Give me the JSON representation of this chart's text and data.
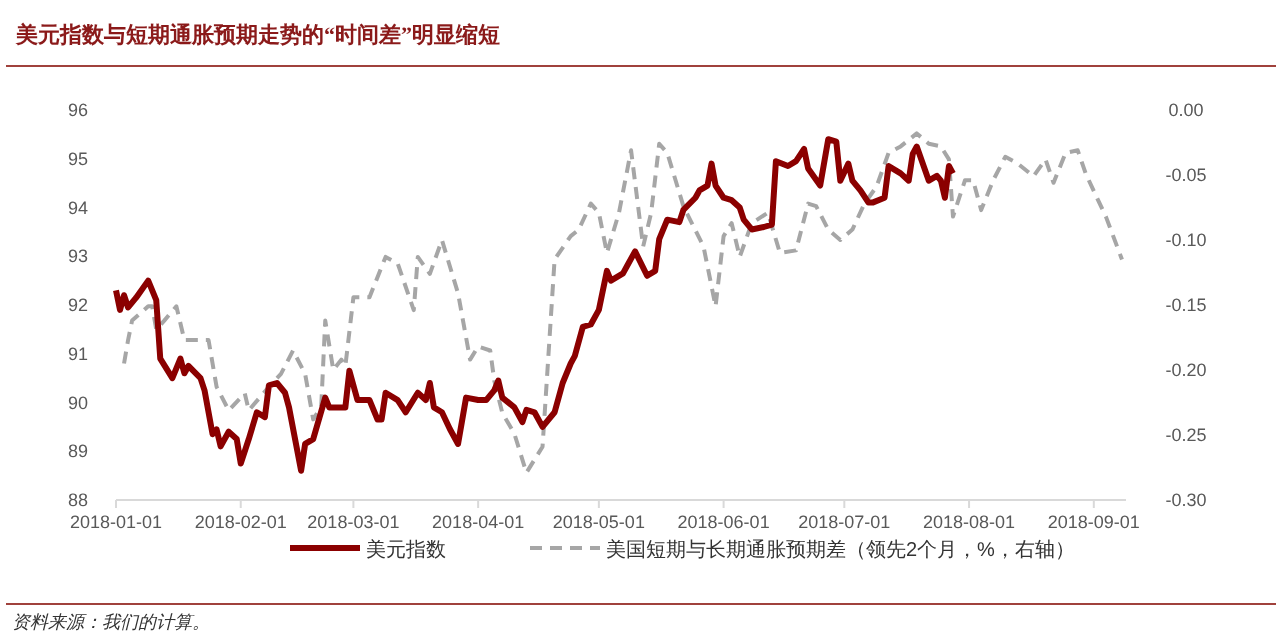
{
  "chart_data": {
    "type": "line",
    "title": "美元指数与短期通胀预期走势的“时间差”明显缩短",
    "annotations": [
      "资料来源：我们的计算。"
    ],
    "xlim": [
      "2018-01-01",
      "2018-09-09"
    ],
    "xticks": [
      "2018-01-01",
      "2018-02-01",
      "2018-03-01",
      "2018-04-01",
      "2018-05-01",
      "2018-06-01",
      "2018-07-01",
      "2018-08-01",
      "2018-09-01"
    ],
    "ylim": [
      88,
      96
    ],
    "yticks": [
      88,
      89,
      90,
      91,
      92,
      93,
      94,
      95,
      96
    ],
    "y2lim": [
      -0.3,
      0
    ],
    "y2ticks": [
      {
        "value": 0,
        "label": "0.00"
      },
      {
        "value": -0.05,
        "label": "-0.05"
      },
      {
        "value": -0.1,
        "label": "-0.10"
      },
      {
        "value": -0.15,
        "label": "-0.15"
      },
      {
        "value": -0.2,
        "label": "-0.20"
      },
      {
        "value": -0.25,
        "label": "-0.25"
      },
      {
        "value": -0.3,
        "label": "-0.30"
      }
    ],
    "legend": "bottom",
    "grid": false,
    "series": [
      {
        "name": "美元指数",
        "color": "#8b0000",
        "line_style": "solid",
        "x": [
          "2018-01-01",
          "2018-01-02",
          "2018-01-03",
          "2018-01-04",
          "2018-01-06",
          "2018-01-09",
          "2018-01-11",
          "2018-01-12",
          "2018-01-15",
          "2018-01-17",
          "2018-01-18",
          "2018-01-19",
          "2018-01-22",
          "2018-01-23",
          "2018-01-25",
          "2018-01-26",
          "2018-01-27",
          "2018-01-29",
          "2018-01-31",
          "2018-02-01",
          "2018-02-03",
          "2018-02-05",
          "2018-02-07",
          "2018-02-08",
          "2018-02-10",
          "2018-02-12",
          "2018-02-13",
          "2018-02-16",
          "2018-02-17",
          "2018-02-19",
          "2018-02-22",
          "2018-02-23",
          "2018-02-27",
          "2018-02-28",
          "2018-03-02",
          "2018-03-05",
          "2018-03-07",
          "2018-03-08",
          "2018-03-09",
          "2018-03-12",
          "2018-03-14",
          "2018-03-17",
          "2018-03-19",
          "2018-03-20",
          "2018-03-21",
          "2018-03-23",
          "2018-03-25",
          "2018-03-27",
          "2018-03-29",
          "2018-04-01",
          "2018-04-03",
          "2018-04-05",
          "2018-04-06",
          "2018-04-07",
          "2018-04-10",
          "2018-04-12",
          "2018-04-13",
          "2018-04-15",
          "2018-04-17",
          "2018-04-20",
          "2018-04-22",
          "2018-04-24",
          "2018-04-25",
          "2018-04-27",
          "2018-04-29",
          "2018-05-01",
          "2018-05-03",
          "2018-05-04",
          "2018-05-07",
          "2018-05-08",
          "2018-05-10",
          "2018-05-13",
          "2018-05-15",
          "2018-05-16",
          "2018-05-18",
          "2018-05-21",
          "2018-05-22",
          "2018-05-25",
          "2018-05-26",
          "2018-05-28",
          "2018-05-29",
          "2018-05-30",
          "2018-06-01",
          "2018-06-03",
          "2018-06-05",
          "2018-06-06",
          "2018-06-08",
          "2018-06-11",
          "2018-06-13",
          "2018-06-14",
          "2018-06-17",
          "2018-06-19",
          "2018-06-21",
          "2018-06-22",
          "2018-06-25",
          "2018-06-27",
          "2018-06-29",
          "2018-06-30",
          "2018-07-02",
          "2018-07-03",
          "2018-07-05",
          "2018-07-07",
          "2018-07-08",
          "2018-07-11",
          "2018-07-12",
          "2018-07-15",
          "2018-07-17",
          "2018-07-18",
          "2018-07-19",
          "2018-07-22",
          "2018-07-24",
          "2018-07-25",
          "2018-07-26",
          "2018-07-27",
          "2018-07-28"
        ],
        "values": [
          92.3,
          91.9,
          92.2,
          91.95,
          92.15,
          92.5,
          92.1,
          90.9,
          90.5,
          90.9,
          90.6,
          90.75,
          90.5,
          90.25,
          89.35,
          89.45,
          89.1,
          89.4,
          89.25,
          88.75,
          89.25,
          89.8,
          89.7,
          90.35,
          90.4,
          90.2,
          89.9,
          88.6,
          89.15,
          89.25,
          90.1,
          89.9,
          89.9,
          90.65,
          90.05,
          90.05,
          89.65,
          89.65,
          90.2,
          90.05,
          89.8,
          90.2,
          90.05,
          90.4,
          89.9,
          89.8,
          89.45,
          89.15,
          90.1,
          90.05,
          90.05,
          90.25,
          90.45,
          90.1,
          89.9,
          89.6,
          89.85,
          89.8,
          89.5,
          89.8,
          90.4,
          90.8,
          90.95,
          91.55,
          91.6,
          91.9,
          92.7,
          92.5,
          92.65,
          92.8,
          93.1,
          92.6,
          92.7,
          93.35,
          93.75,
          93.7,
          93.95,
          94.2,
          94.35,
          94.45,
          94.9,
          94.45,
          94.2,
          94.15,
          94.0,
          93.75,
          93.55,
          93.6,
          93.65,
          94.95,
          94.85,
          94.95,
          95.2,
          94.8,
          94.45,
          95.4,
          95.35,
          94.55,
          94.9,
          94.55,
          94.35,
          94.1,
          94.1,
          94.2,
          94.85,
          94.7,
          94.55,
          95.1,
          95.25,
          94.55,
          94.65,
          94.55,
          94.2,
          94.85,
          94.7
        ]
      },
      {
        "name": "美国短期与长期通胀预期差（领先2个月，%，右轴）",
        "color": "#a6a6a6",
        "line_style": "dashed",
        "axis": "y2",
        "x": [
          "2018-01-03",
          "2018-01-04",
          "2018-01-05",
          "2018-01-09",
          "2018-01-10",
          "2018-01-11",
          "2018-01-13",
          "2018-01-16",
          "2018-01-18",
          "2018-01-24",
          "2018-01-26",
          "2018-01-29",
          "2018-02-02",
          "2018-02-03",
          "2018-02-08",
          "2018-02-11",
          "2018-02-14",
          "2018-02-17",
          "2018-02-19",
          "2018-02-21",
          "2018-02-22",
          "2018-02-24",
          "2018-02-26",
          "2018-02-27",
          "2018-03-01",
          "2018-03-05",
          "2018-03-09",
          "2018-03-12",
          "2018-03-16",
          "2018-03-17",
          "2018-03-20",
          "2018-03-23",
          "2018-03-27",
          "2018-03-30",
          "2018-04-01",
          "2018-04-04",
          "2018-04-05",
          "2018-04-07",
          "2018-04-10",
          "2018-04-13",
          "2018-04-17",
          "2018-04-20",
          "2018-04-24",
          "2018-04-26",
          "2018-04-29",
          "2018-05-01",
          "2018-05-03",
          "2018-05-06",
          "2018-05-09",
          "2018-05-12",
          "2018-05-14",
          "2018-05-16",
          "2018-05-18",
          "2018-05-22",
          "2018-05-27",
          "2018-05-30",
          "2018-06-01",
          "2018-06-03",
          "2018-06-05",
          "2018-06-08",
          "2018-06-12",
          "2018-06-15",
          "2018-06-19",
          "2018-06-22",
          "2018-06-24",
          "2018-06-27",
          "2018-06-30",
          "2018-07-03",
          "2018-07-06",
          "2018-07-09",
          "2018-07-12",
          "2018-07-15",
          "2018-07-19",
          "2018-07-22",
          "2018-07-25",
          "2018-07-27",
          "2018-07-28",
          "2018-07-31",
          "2018-08-02",
          "2018-08-04",
          "2018-08-07",
          "2018-08-10",
          "2018-08-13",
          "2018-08-17",
          "2018-08-20",
          "2018-08-22",
          "2018-08-25",
          "2018-08-28",
          "2018-08-30",
          "2018-09-02",
          "2018-09-04",
          "2018-09-08"
        ],
        "values": [
          -0.195,
          -0.177,
          -0.162,
          -0.151,
          -0.151,
          -0.169,
          -0.162,
          -0.151,
          -0.177,
          -0.177,
          -0.213,
          -0.231,
          -0.218,
          -0.231,
          -0.213,
          -0.203,
          -0.185,
          -0.203,
          -0.238,
          -0.228,
          -0.162,
          -0.2,
          -0.192,
          -0.197,
          -0.144,
          -0.144,
          -0.113,
          -0.118,
          -0.154,
          -0.113,
          -0.126,
          -0.1,
          -0.141,
          -0.192,
          -0.182,
          -0.185,
          -0.208,
          -0.233,
          -0.249,
          -0.279,
          -0.259,
          -0.115,
          -0.097,
          -0.092,
          -0.072,
          -0.079,
          -0.11,
          -0.079,
          -0.031,
          -0.105,
          -0.079,
          -0.026,
          -0.033,
          -0.074,
          -0.105,
          -0.151,
          -0.097,
          -0.087,
          -0.113,
          -0.087,
          -0.079,
          -0.11,
          -0.108,
          -0.072,
          -0.074,
          -0.092,
          -0.1,
          -0.092,
          -0.072,
          -0.059,
          -0.033,
          -0.028,
          -0.018,
          -0.026,
          -0.028,
          -0.038,
          -0.082,
          -0.054,
          -0.054,
          -0.077,
          -0.054,
          -0.036,
          -0.041,
          -0.051,
          -0.038,
          -0.056,
          -0.033,
          -0.031,
          -0.049,
          -0.069,
          -0.082,
          -0.115
        ]
      }
    ]
  }
}
